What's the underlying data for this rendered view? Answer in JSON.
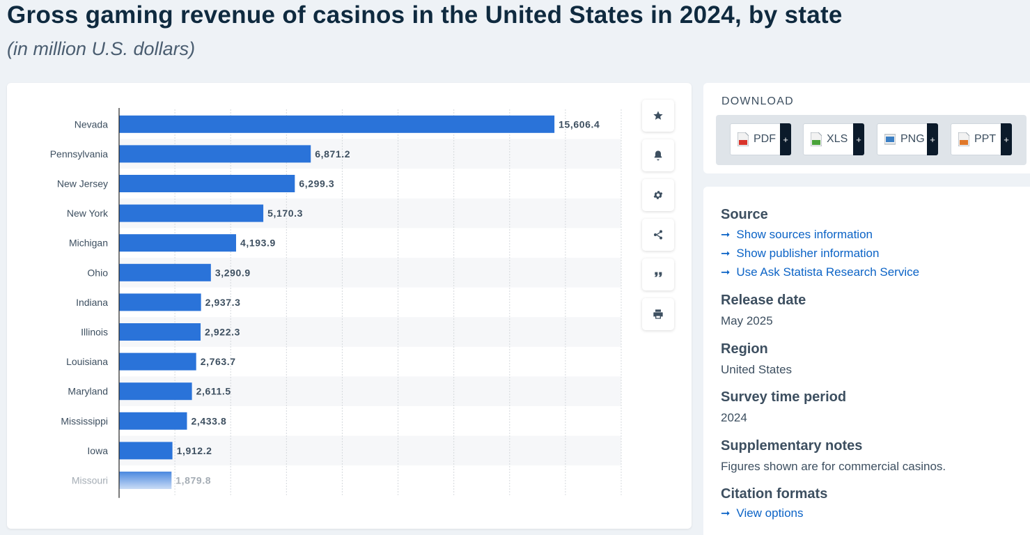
{
  "header": {
    "title": "Gross gaming revenue of casinos in the United States in 2024, by state",
    "subtitle": "(in million U.S. dollars)"
  },
  "chart_data": {
    "type": "bar",
    "orientation": "horizontal",
    "title": "Gross gaming revenue of casinos in the United States in 2024, by state",
    "subtitle": "(in million U.S. dollars)",
    "xlabel": "",
    "ylabel": "",
    "xlim": [
      0,
      18000
    ],
    "grid": true,
    "categories": [
      "Nevada",
      "Pennsylvania",
      "New Jersey",
      "New York",
      "Michigan",
      "Ohio",
      "Indiana",
      "Illinois",
      "Louisiana",
      "Maryland",
      "Mississippi",
      "Iowa",
      "Missouri"
    ],
    "values": [
      15606.4,
      6871.2,
      6299.3,
      5170.3,
      4193.9,
      3290.9,
      2937.3,
      2922.3,
      2763.7,
      2611.5,
      2433.8,
      1912.2,
      1879.8
    ],
    "value_labels": [
      "15,606.4",
      "6,871.2",
      "6,299.3",
      "5,170.3",
      "4,193.9",
      "3,290.9",
      "2,937.3",
      "2,922.3",
      "2,763.7",
      "2,611.5",
      "2,433.8",
      "1,912.2",
      "1,879.8"
    ],
    "bar_color": "#2a73d9"
  },
  "tools": [
    {
      "name": "favorite-button",
      "icon": "star-icon"
    },
    {
      "name": "notification-button",
      "icon": "bell-icon"
    },
    {
      "name": "settings-button",
      "icon": "gear-icon"
    },
    {
      "name": "share-button",
      "icon": "share-icon"
    },
    {
      "name": "cite-button",
      "icon": "quote-icon"
    },
    {
      "name": "print-button",
      "icon": "printer-icon"
    }
  ],
  "download": {
    "title": "DOWNLOAD",
    "buttons": [
      {
        "label": "PDF",
        "color": "#d9342b"
      },
      {
        "label": "XLS",
        "color": "#4aa33a"
      },
      {
        "label": "PNG",
        "color": "#3b7fc4"
      },
      {
        "label": "PPT",
        "color": "#e0782a"
      }
    ],
    "plus": "+"
  },
  "info": {
    "source_heading": "Source",
    "source_links": [
      "Show sources information",
      "Show publisher information",
      "Use Ask Statista Research Service"
    ],
    "release_heading": "Release date",
    "release_value": "May 2025",
    "region_heading": "Region",
    "region_value": "United States",
    "survey_heading": "Survey time period",
    "survey_value": "2024",
    "notes_heading": "Supplementary notes",
    "notes_value": "Figures shown are for commercial casinos.",
    "citation_heading": "Citation formats",
    "citation_link": "View options"
  },
  "arrow_glyph": "➞"
}
